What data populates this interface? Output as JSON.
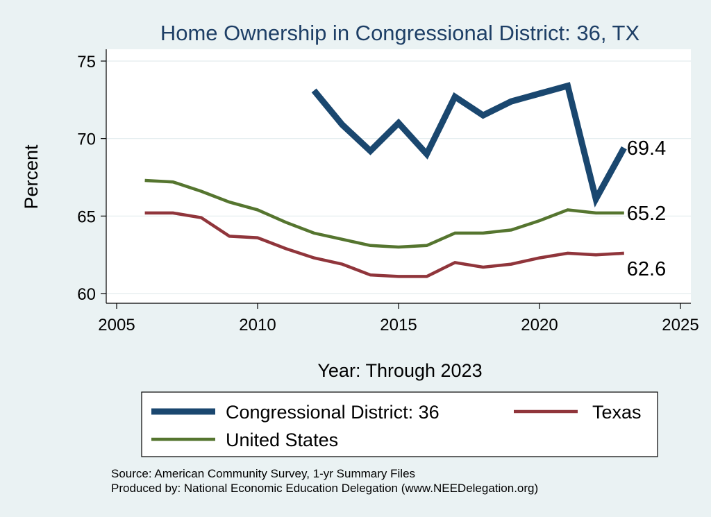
{
  "chart_data": {
    "type": "line",
    "title": "Home Ownership in Congressional District:  36, TX",
    "xlabel": "Year: Through 2023",
    "ylabel": "Percent",
    "xlim": [
      2005,
      2025
    ],
    "ylim": [
      60,
      75
    ],
    "x_ticks": [
      2005,
      2010,
      2015,
      2020,
      2025
    ],
    "y_ticks": [
      60,
      65,
      70,
      75
    ],
    "grid": true,
    "legend_position": "bottom",
    "series": [
      {
        "name": "Congressional District:  36",
        "color": "#1a476f",
        "x": [
          2012,
          2013,
          2014,
          2015,
          2016,
          2017,
          2018,
          2019,
          2020,
          2021,
          2022,
          2023
        ],
        "values": [
          73.1,
          70.9,
          69.2,
          71.0,
          69.0,
          72.7,
          71.5,
          72.4,
          72.9,
          73.4,
          66.1,
          69.4
        ],
        "end_label": "69.4"
      },
      {
        "name": "Texas",
        "color": "#90353b",
        "x": [
          2006,
          2007,
          2008,
          2009,
          2010,
          2011,
          2012,
          2013,
          2014,
          2015,
          2016,
          2017,
          2018,
          2019,
          2020,
          2021,
          2022,
          2023
        ],
        "values": [
          65.2,
          65.2,
          64.9,
          63.7,
          63.6,
          62.9,
          62.3,
          61.9,
          61.2,
          61.1,
          61.1,
          62.0,
          61.7,
          61.9,
          62.3,
          62.6,
          62.5,
          62.6
        ],
        "end_label": "62.6"
      },
      {
        "name": "United States",
        "color": "#55752f",
        "x": [
          2006,
          2007,
          2008,
          2009,
          2010,
          2011,
          2012,
          2013,
          2014,
          2015,
          2016,
          2017,
          2018,
          2019,
          2020,
          2021,
          2022,
          2023
        ],
        "values": [
          67.3,
          67.2,
          66.6,
          65.9,
          65.4,
          64.6,
          63.9,
          63.5,
          63.1,
          63.0,
          63.1,
          63.9,
          63.9,
          64.1,
          64.7,
          65.4,
          65.2,
          65.2
        ],
        "end_label": "65.2"
      }
    ]
  },
  "source": {
    "line1": "Source: American Community Survey, 1-yr Summary Files",
    "line2": "Produced by: National Economic Education Delegation (www.NEEDelegation.org)"
  }
}
